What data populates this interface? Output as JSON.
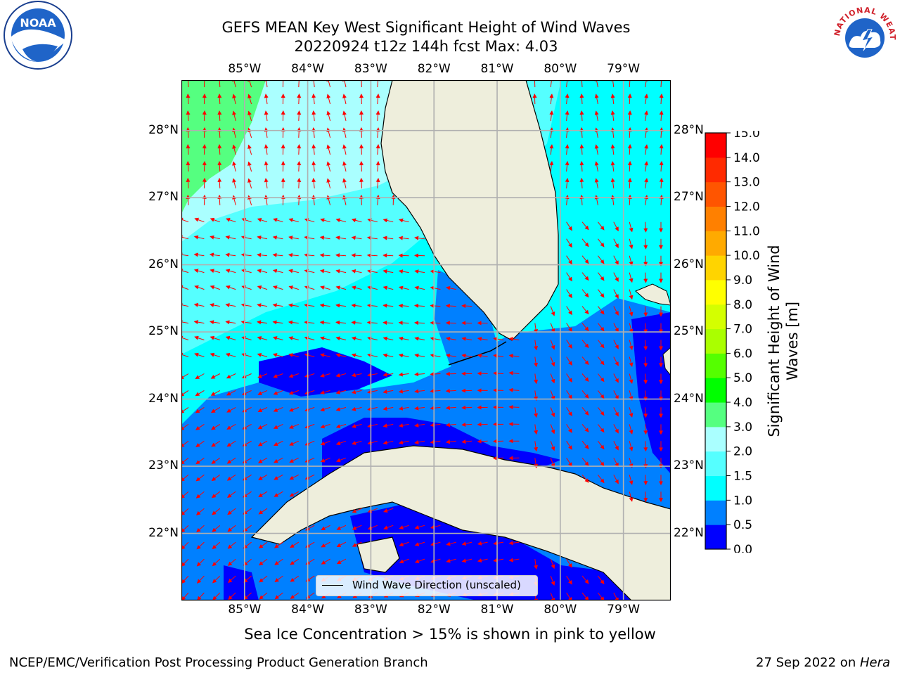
{
  "title_line1": "GEFS MEAN Key West Significant Height of Wind Waves",
  "title_line2": "20220924 t12z 144h fcst   Max: 4.03",
  "subtitle": "Sea Ice Concentration > 15% is shown in pink to yellow",
  "footer_left": "NCEP/EMC/Verification Post Processing Product Generation Branch",
  "footer_right_prefix": "27 Sep 2022 on ",
  "footer_right_host": "Hera",
  "legend_label": "Wind Wave Direction (unscaled)",
  "colorbar": {
    "label": "Significant Height of Wind Waves [m]",
    "ticks": [
      "0.0",
      "0.5",
      "1.0",
      "1.5",
      "2.0",
      "3.0",
      "4.0",
      "5.0",
      "6.0",
      "7.0",
      "8.0",
      "9.0",
      "10.0",
      "11.0",
      "12.0",
      "13.0",
      "14.0",
      "15.0"
    ],
    "colors": [
      "#0000ff",
      "#0080ff",
      "#00ffff",
      "#55ffff",
      "#aaffff",
      "#55ff80",
      "#00ff00",
      "#55ff00",
      "#aaff00",
      "#d4ff00",
      "#ffff00",
      "#ffd400",
      "#ffaa00",
      "#ff8000",
      "#ff5500",
      "#ff2a00",
      "#ff0000"
    ]
  },
  "map": {
    "lon_labels": [
      "85°W",
      "84°W",
      "83°W",
      "82°W",
      "81°W",
      "80°W",
      "79°W"
    ],
    "lat_labels": [
      "28°N",
      "27°N",
      "26°N",
      "25°N",
      "24°N",
      "23°N",
      "22°N"
    ],
    "lon_range": [
      -86,
      -78.25
    ],
    "lat_range": [
      21,
      28.75
    ],
    "land_color": "#eeeedc",
    "arrow_color": "#ff0000",
    "grid_color": "#b0b0b0"
  },
  "logos": {
    "noaa_text": "NOAA",
    "nws_text": "NATIONAL WEATHER SERVICE"
  }
}
